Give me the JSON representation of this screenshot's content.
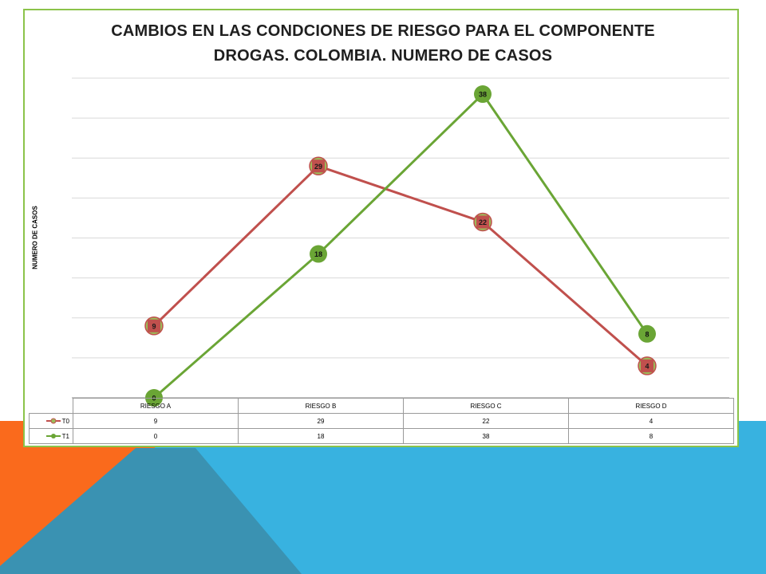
{
  "colors": {
    "t0": "#c0504d",
    "t1": "#6aa535",
    "frame": "#8bc34a",
    "bg_orange": "#fa6a1c",
    "bg_blue": "#38b2e0",
    "bg_steel": "#3a92b2"
  },
  "axis": {
    "y_label": "NUMERO DE CASOS"
  },
  "chart_data": {
    "type": "line",
    "title": "CAMBIOS EN LAS CONDCIONES DE RIESGO PARA EL COMPONENTE DROGAS. COLOMBIA. NUMERO DE CASOS",
    "title_lines": [
      "CAMBIOS EN LAS CONDCIONES DE RIESGO PARA EL COMPONENTE",
      "DROGAS. COLOMBIA. NUMERO DE CASOS"
    ],
    "categories": [
      "RIESGO A",
      "RIESGO B",
      "RIESGO C",
      "RIESGO D"
    ],
    "series": [
      {
        "name": "T0",
        "values": [
          9,
          29,
          22,
          4
        ]
      },
      {
        "name": "T1",
        "values": [
          0,
          18,
          38,
          8
        ]
      }
    ],
    "xlabel": "",
    "ylabel": "NUMERO DE CASOS",
    "ylim": [
      0,
      40
    ],
    "grid": true,
    "legend": "data-table",
    "data_labels": true
  }
}
